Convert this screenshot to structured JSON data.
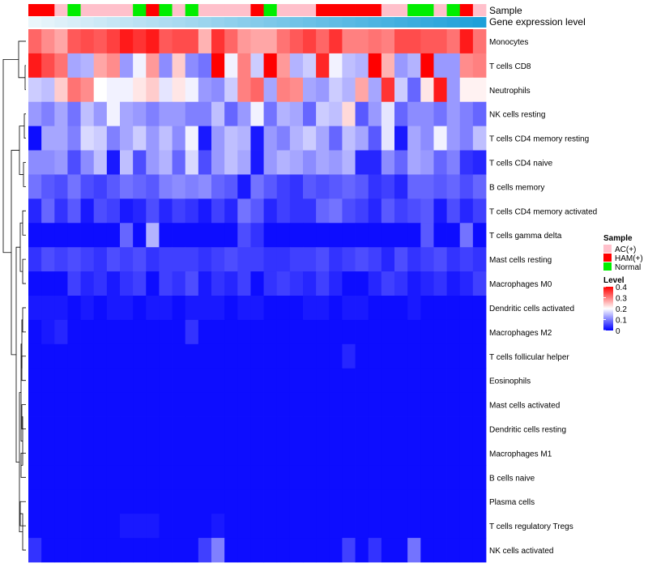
{
  "chart_data": {
    "type": "heatmap",
    "title": "",
    "annotation_labels": [
      "Sample",
      "Gene expression level"
    ],
    "legend_sample": {
      "title": "Sample",
      "items": [
        {
          "label": "AC(+)",
          "color": "#ffc0cb"
        },
        {
          "label": "HAM(+)",
          "color": "#ff0000"
        },
        {
          "label": "Normal",
          "color": "#00ee00"
        }
      ]
    },
    "legend_level": {
      "title": "Level",
      "ticks": [
        "0.4",
        "0.3",
        "0.2",
        "0.1",
        "0"
      ],
      "tick_values": [
        0.4,
        0.3,
        0.2,
        0.1,
        0
      ],
      "colors": {
        "low": "#0000ff",
        "mid": "#ffffff",
        "high": "#ff0000"
      },
      "range": [
        0,
        0.4
      ],
      "midpoint": 0.2
    },
    "sample_groups": [
      "HAM(+)",
      "HAM(+)",
      "AC(+)",
      "Normal",
      "AC(+)",
      "AC(+)",
      "AC(+)",
      "AC(+)",
      "Normal",
      "HAM(+)",
      "Normal",
      "AC(+)",
      "Normal",
      "AC(+)",
      "AC(+)",
      "AC(+)",
      "AC(+)",
      "HAM(+)",
      "Normal",
      "AC(+)",
      "AC(+)",
      "AC(+)",
      "HAM(+)",
      "HAM(+)",
      "HAM(+)",
      "HAM(+)",
      "HAM(+)",
      "AC(+)",
      "AC(+)",
      "Normal",
      "Normal",
      "AC(+)",
      "Normal",
      "HAM(+)",
      "AC(+)"
    ],
    "expression_level_colors": [
      "#eaf6fb",
      "#e4f3fa",
      "#def0f9",
      "#d8eef8",
      "#d2ebf7",
      "#cce9f6",
      "#c6e6f5",
      "#c0e4f4",
      "#bae1f3",
      "#b4dff2",
      "#aedcf1",
      "#a8daf0",
      "#a2d7ef",
      "#9cd5ee",
      "#96d2ed",
      "#90d0ec",
      "#8acdeb",
      "#84cbea",
      "#7ec8e9",
      "#78c6e8",
      "#72c3e7",
      "#6cc1e6",
      "#66bee5",
      "#60bce4",
      "#5ab9e3",
      "#54b7e2",
      "#4eb4e1",
      "#48b2e0",
      "#42afdf",
      "#3cadde",
      "#36aadd",
      "#30a8dc",
      "#2aa5db",
      "#24a3da",
      "#1ea0d9"
    ],
    "rows": [
      "Monocytes",
      "T cells CD8",
      "Neutrophils",
      "NK cells resting",
      "T cells CD4 memory resting",
      "T cells CD4 naive",
      "B cells memory",
      "T cells CD4 memory activated",
      "T cells gamma delta",
      "Mast cells resting",
      "Macrophages M0",
      "Dendritic cells activated",
      "Macrophages M2",
      "T cells follicular helper",
      "Eosinophils",
      "Mast cells activated",
      "Dendritic cells resting",
      "Macrophages M1",
      "B cells naive",
      "Plasma cells",
      "T cells regulatory  Tregs",
      "NK cells activated"
    ],
    "values": [
      [
        0.32,
        0.29,
        0.27,
        0.33,
        0.34,
        0.33,
        0.35,
        0.38,
        0.36,
        0.38,
        0.33,
        0.34,
        0.34,
        0.26,
        0.36,
        0.32,
        0.28,
        0.27,
        0.27,
        0.31,
        0.33,
        0.35,
        0.32,
        0.36,
        0.3,
        0.3,
        0.31,
        0.3,
        0.34,
        0.34,
        0.33,
        0.33,
        0.31,
        0.38,
        0.31
      ],
      [
        0.38,
        0.34,
        0.31,
        0.13,
        0.14,
        0.27,
        0.29,
        0.12,
        0.19,
        0.28,
        0.11,
        0.24,
        0.11,
        0.09,
        0.4,
        0.19,
        0.3,
        0.16,
        0.4,
        0.28,
        0.14,
        0.16,
        0.37,
        0.19,
        0.15,
        0.14,
        0.4,
        0.26,
        0.12,
        0.14,
        0.4,
        0.12,
        0.12,
        0.29,
        0.3
      ],
      [
        0.16,
        0.15,
        0.24,
        0.31,
        0.29,
        0.2,
        0.19,
        0.19,
        0.22,
        0.24,
        0.18,
        0.22,
        0.19,
        0.12,
        0.11,
        0.16,
        0.3,
        0.32,
        0.13,
        0.3,
        0.29,
        0.13,
        0.12,
        0.16,
        0.14,
        0.27,
        0.13,
        0.36,
        0.16,
        0.08,
        0.22,
        0.38,
        0.12,
        0.21,
        0.21
      ],
      [
        0.12,
        0.1,
        0.13,
        0.09,
        0.15,
        0.12,
        0.19,
        0.13,
        0.12,
        0.1,
        0.12,
        0.12,
        0.1,
        0.1,
        0.15,
        0.08,
        0.12,
        0.19,
        0.09,
        0.14,
        0.13,
        0.08,
        0.16,
        0.15,
        0.23,
        0.07,
        0.12,
        0.18,
        0.08,
        0.11,
        0.11,
        0.09,
        0.12,
        0.1,
        0.08
      ],
      [
        0.01,
        0.13,
        0.13,
        0.1,
        0.17,
        0.16,
        0.1,
        0.13,
        0.16,
        0.12,
        0.15,
        0.11,
        0.19,
        0.02,
        0.12,
        0.15,
        0.14,
        0.02,
        0.12,
        0.1,
        0.14,
        0.16,
        0.13,
        0.08,
        0.15,
        0.13,
        0.07,
        0.18,
        0.02,
        0.13,
        0.11,
        0.19,
        0.12,
        0.1,
        0.15
      ],
      [
        0.11,
        0.11,
        0.12,
        0.06,
        0.11,
        0.15,
        0.02,
        0.15,
        0.06,
        0.12,
        0.14,
        0.08,
        0.17,
        0.06,
        0.12,
        0.15,
        0.13,
        0.02,
        0.12,
        0.14,
        0.13,
        0.11,
        0.13,
        0.12,
        0.14,
        0.03,
        0.03,
        0.11,
        0.08,
        0.13,
        0.12,
        0.08,
        0.1,
        0.04,
        0.03
      ],
      [
        0.09,
        0.07,
        0.06,
        0.09,
        0.06,
        0.05,
        0.07,
        0.09,
        0.08,
        0.07,
        0.1,
        0.11,
        0.1,
        0.11,
        0.08,
        0.07,
        0.02,
        0.09,
        0.07,
        0.05,
        0.04,
        0.07,
        0.06,
        0.07,
        0.08,
        0.07,
        0.04,
        0.05,
        0.03,
        0.08,
        0.08,
        0.07,
        0.08,
        0.06,
        0.08
      ],
      [
        0.03,
        0.08,
        0.04,
        0.07,
        0.02,
        0.06,
        0.05,
        0.02,
        0.03,
        0.06,
        0.03,
        0.05,
        0.04,
        0.02,
        0.05,
        0.03,
        0.09,
        0.07,
        0.03,
        0.05,
        0.04,
        0.04,
        0.08,
        0.09,
        0.06,
        0.05,
        0.03,
        0.07,
        0.05,
        0.06,
        0.07,
        0.02,
        0.06,
        0.03,
        0.05
      ],
      [
        0.01,
        0.01,
        0.01,
        0.01,
        0.01,
        0.01,
        0.01,
        0.08,
        0.01,
        0.14,
        0.01,
        0.01,
        0.01,
        0.01,
        0.01,
        0.01,
        0.06,
        0.04,
        0.01,
        0.01,
        0.01,
        0.01,
        0.01,
        0.01,
        0.01,
        0.01,
        0.01,
        0.01,
        0.01,
        0.01,
        0.07,
        0.01,
        0.01,
        0.09,
        0.01
      ],
      [
        0.04,
        0.06,
        0.05,
        0.06,
        0.05,
        0.04,
        0.06,
        0.05,
        0.06,
        0.04,
        0.05,
        0.05,
        0.05,
        0.04,
        0.05,
        0.06,
        0.05,
        0.05,
        0.04,
        0.04,
        0.05,
        0.05,
        0.06,
        0.04,
        0.05,
        0.06,
        0.05,
        0.03,
        0.06,
        0.04,
        0.05,
        0.06,
        0.04,
        0.05,
        0.04
      ],
      [
        0.01,
        0.01,
        0.01,
        0.05,
        0.03,
        0.04,
        0.02,
        0.04,
        0.05,
        0.01,
        0.05,
        0.04,
        0.06,
        0.02,
        0.04,
        0.03,
        0.05,
        0.01,
        0.04,
        0.05,
        0.04,
        0.03,
        0.05,
        0.03,
        0.01,
        0.01,
        0.03,
        0.05,
        0.04,
        0.02,
        0.03,
        0.04,
        0.02,
        0.03,
        0.05
      ],
      [
        0.02,
        0.02,
        0.02,
        0.01,
        0.02,
        0.01,
        0.02,
        0.02,
        0.01,
        0.02,
        0.02,
        0.01,
        0.02,
        0.02,
        0.02,
        0.01,
        0.02,
        0.02,
        0.01,
        0.01,
        0.01,
        0.02,
        0.02,
        0.01,
        0.02,
        0.02,
        0.01,
        0.01,
        0.01,
        0.02,
        0.01,
        0.01,
        0.01,
        0.01,
        0.01
      ],
      [
        0.01,
        0.02,
        0.03,
        0.01,
        0.01,
        0.01,
        0.01,
        0.01,
        0.01,
        0.01,
        0.01,
        0.01,
        0.04,
        0.01,
        0.01,
        0.01,
        0.01,
        0.01,
        0.01,
        0.01,
        0.01,
        0.01,
        0.01,
        0.01,
        0.01,
        0.01,
        0.01,
        0.01,
        0.01,
        0.01,
        0.01,
        0.01,
        0.01,
        0.01,
        0.01
      ],
      [
        0.01,
        0.01,
        0.01,
        0.01,
        0.01,
        0.01,
        0.01,
        0.01,
        0.01,
        0.01,
        0.01,
        0.01,
        0.01,
        0.01,
        0.01,
        0.01,
        0.01,
        0.01,
        0.01,
        0.01,
        0.01,
        0.01,
        0.01,
        0.01,
        0.03,
        0.01,
        0.01,
        0.01,
        0.01,
        0.01,
        0.01,
        0.01,
        0.01,
        0.01,
        0.01
      ],
      [
        0.01,
        0.01,
        0.01,
        0.01,
        0.01,
        0.01,
        0.01,
        0.01,
        0.01,
        0.01,
        0.01,
        0.01,
        0.01,
        0.01,
        0.01,
        0.01,
        0.01,
        0.01,
        0.01,
        0.01,
        0.01,
        0.01,
        0.01,
        0.01,
        0.01,
        0.01,
        0.01,
        0.01,
        0.01,
        0.01,
        0.01,
        0.01,
        0.01,
        0.01,
        0.01
      ],
      [
        0.01,
        0.01,
        0.01,
        0.01,
        0.01,
        0.01,
        0.01,
        0.01,
        0.01,
        0.01,
        0.01,
        0.01,
        0.01,
        0.01,
        0.01,
        0.01,
        0.01,
        0.01,
        0.01,
        0.01,
        0.01,
        0.01,
        0.01,
        0.01,
        0.01,
        0.01,
        0.01,
        0.01,
        0.01,
        0.01,
        0.01,
        0.01,
        0.01,
        0.01,
        0.01
      ],
      [
        0.01,
        0.01,
        0.01,
        0.01,
        0.01,
        0.01,
        0.01,
        0.01,
        0.01,
        0.01,
        0.01,
        0.01,
        0.01,
        0.01,
        0.01,
        0.01,
        0.01,
        0.01,
        0.01,
        0.01,
        0.01,
        0.01,
        0.01,
        0.01,
        0.01,
        0.01,
        0.01,
        0.01,
        0.01,
        0.01,
        0.01,
        0.01,
        0.01,
        0.01,
        0.01
      ],
      [
        0.01,
        0.01,
        0.01,
        0.01,
        0.01,
        0.01,
        0.01,
        0.01,
        0.01,
        0.01,
        0.01,
        0.01,
        0.01,
        0.01,
        0.01,
        0.01,
        0.01,
        0.01,
        0.01,
        0.01,
        0.01,
        0.01,
        0.01,
        0.01,
        0.01,
        0.01,
        0.01,
        0.01,
        0.01,
        0.01,
        0.01,
        0.01,
        0.01,
        0.01,
        0.01
      ],
      [
        0.01,
        0.01,
        0.01,
        0.01,
        0.01,
        0.01,
        0.01,
        0.01,
        0.01,
        0.01,
        0.01,
        0.01,
        0.01,
        0.01,
        0.01,
        0.01,
        0.01,
        0.01,
        0.01,
        0.01,
        0.01,
        0.01,
        0.01,
        0.01,
        0.01,
        0.01,
        0.01,
        0.01,
        0.01,
        0.01,
        0.01,
        0.01,
        0.01,
        0.01,
        0.01
      ],
      [
        0.01,
        0.01,
        0.01,
        0.01,
        0.01,
        0.01,
        0.01,
        0.01,
        0.01,
        0.01,
        0.01,
        0.01,
        0.01,
        0.01,
        0.01,
        0.01,
        0.01,
        0.01,
        0.01,
        0.01,
        0.01,
        0.01,
        0.01,
        0.01,
        0.01,
        0.01,
        0.01,
        0.01,
        0.01,
        0.01,
        0.01,
        0.01,
        0.01,
        0.01,
        0.01
      ],
      [
        0.01,
        0.01,
        0.01,
        0.01,
        0.01,
        0.01,
        0.01,
        0.02,
        0.02,
        0.02,
        0.01,
        0.01,
        0.01,
        0.01,
        0.02,
        0.01,
        0.01,
        0.01,
        0.01,
        0.01,
        0.01,
        0.01,
        0.01,
        0.01,
        0.01,
        0.01,
        0.01,
        0.01,
        0.01,
        0.01,
        0.01,
        0.01,
        0.01,
        0.01,
        0.01
      ],
      [
        0.04,
        0.01,
        0.01,
        0.01,
        0.01,
        0.01,
        0.01,
        0.01,
        0.01,
        0.01,
        0.01,
        0.01,
        0.01,
        0.05,
        0.1,
        0.01,
        0.01,
        0.01,
        0.01,
        0.01,
        0.01,
        0.01,
        0.01,
        0.01,
        0.05,
        0.01,
        0.04,
        0.01,
        0.01,
        0.09,
        0.01,
        0.01,
        0.01,
        0.01,
        0.01
      ]
    ],
    "dendrogram": {
      "merges": [
        [
          1,
          2
        ],
        [
          3,
          4
        ],
        [
          5,
          6
        ],
        [
          7,
          8
        ],
        [
          9,
          10
        ],
        [
          11,
          12
        ],
        [
          13,
          14
        ],
        [
          15,
          16
        ],
        [
          17,
          18
        ],
        [
          19,
          20
        ],
        [
          21,
          22
        ],
        [
          0,
          1
        ],
        [
          2,
          3
        ],
        [
          4,
          5
        ],
        [
          6,
          7
        ],
        [
          8,
          9
        ],
        [
          10,
          11
        ],
        [
          12,
          13
        ],
        [
          14,
          15
        ],
        [
          16,
          17
        ],
        [
          18,
          19
        ]
      ]
    }
  }
}
